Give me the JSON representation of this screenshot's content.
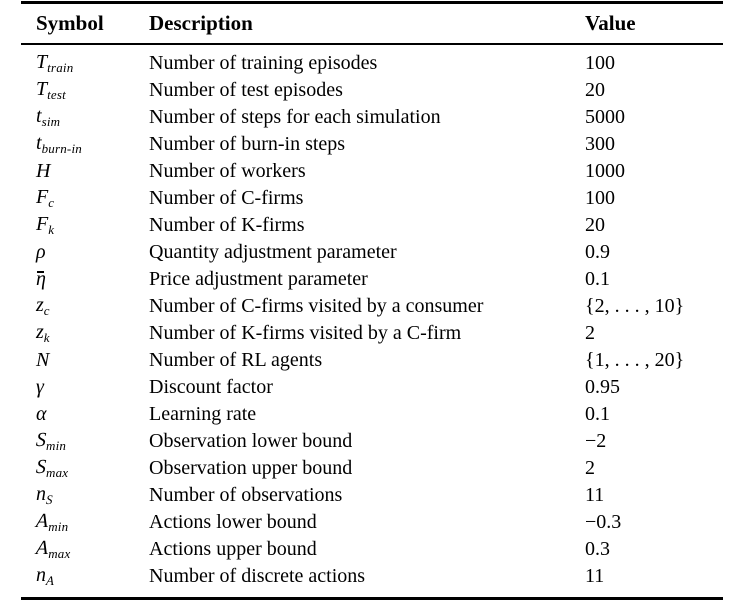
{
  "page": {
    "background": "#ffffff",
    "text_color": "#000000",
    "rule_color": "#000000"
  },
  "table": {
    "headers": [
      {
        "label": "Symbol"
      },
      {
        "label": "Description"
      },
      {
        "label": "Value"
      }
    ],
    "rows": [
      {
        "symbol": {
          "base": "T",
          "sub": "train"
        },
        "description": "Number of training episodes",
        "value": "100"
      },
      {
        "symbol": {
          "base": "T",
          "sub": "test"
        },
        "description": "Number of test episodes",
        "value": "20"
      },
      {
        "symbol": {
          "base": "t",
          "sub": "sim"
        },
        "description": "Number of steps for each simulation",
        "value": "5000"
      },
      {
        "symbol": {
          "base": "t",
          "sub": "burn-in"
        },
        "description": "Number of burn-in steps",
        "value": "300"
      },
      {
        "symbol": {
          "base": "H",
          "sub": ""
        },
        "description": "Number of workers",
        "value": "1000"
      },
      {
        "symbol": {
          "base": "F",
          "sub": "c"
        },
        "description": "Number of C-firms",
        "value": "100"
      },
      {
        "symbol": {
          "base": "F",
          "sub": "k"
        },
        "description": "Number of K-firms",
        "value": "20"
      },
      {
        "symbol": {
          "base": "ρ",
          "sub": ""
        },
        "description": "Quantity adjustment parameter",
        "value": "0.9"
      },
      {
        "symbol": {
          "base": "η",
          "sub": "",
          "bar": true
        },
        "description": "Price adjustment parameter",
        "value": "0.1"
      },
      {
        "symbol": {
          "base": "z",
          "sub": "c"
        },
        "description": "Number of C-firms visited by a consumer",
        "value": "{2, . . . , 10}"
      },
      {
        "symbol": {
          "base": "z",
          "sub": "k"
        },
        "description": "Number of K-firms visited by a C-firm",
        "value": "2"
      },
      {
        "symbol": {
          "base": "N",
          "sub": ""
        },
        "description": "Number of RL agents",
        "value": "{1, . . . , 20}"
      },
      {
        "symbol": {
          "base": "γ",
          "sub": ""
        },
        "description": "Discount factor",
        "value": "0.95"
      },
      {
        "symbol": {
          "base": "α",
          "sub": ""
        },
        "description": "Learning rate",
        "value": "0.1"
      },
      {
        "symbol": {
          "base": "S",
          "sub": "min",
          "cal": true
        },
        "description": "Observation lower bound",
        "value": "−2"
      },
      {
        "symbol": {
          "base": "S",
          "sub": "max",
          "cal": true
        },
        "description": "Observation upper bound",
        "value": "2"
      },
      {
        "symbol": {
          "base": "n",
          "sub": "S",
          "sub_cal": true
        },
        "description": "Number of observations",
        "value": "11"
      },
      {
        "symbol": {
          "base": "A",
          "sub": "min",
          "cal": true
        },
        "description": "Actions lower bound",
        "value": "−0.3"
      },
      {
        "symbol": {
          "base": "A",
          "sub": "max",
          "cal": true
        },
        "description": "Actions upper bound",
        "value": "0.3"
      },
      {
        "symbol": {
          "base": "n",
          "sub": "A",
          "sub_cal": true
        },
        "description": "Number of discrete actions",
        "value": "11"
      }
    ]
  }
}
